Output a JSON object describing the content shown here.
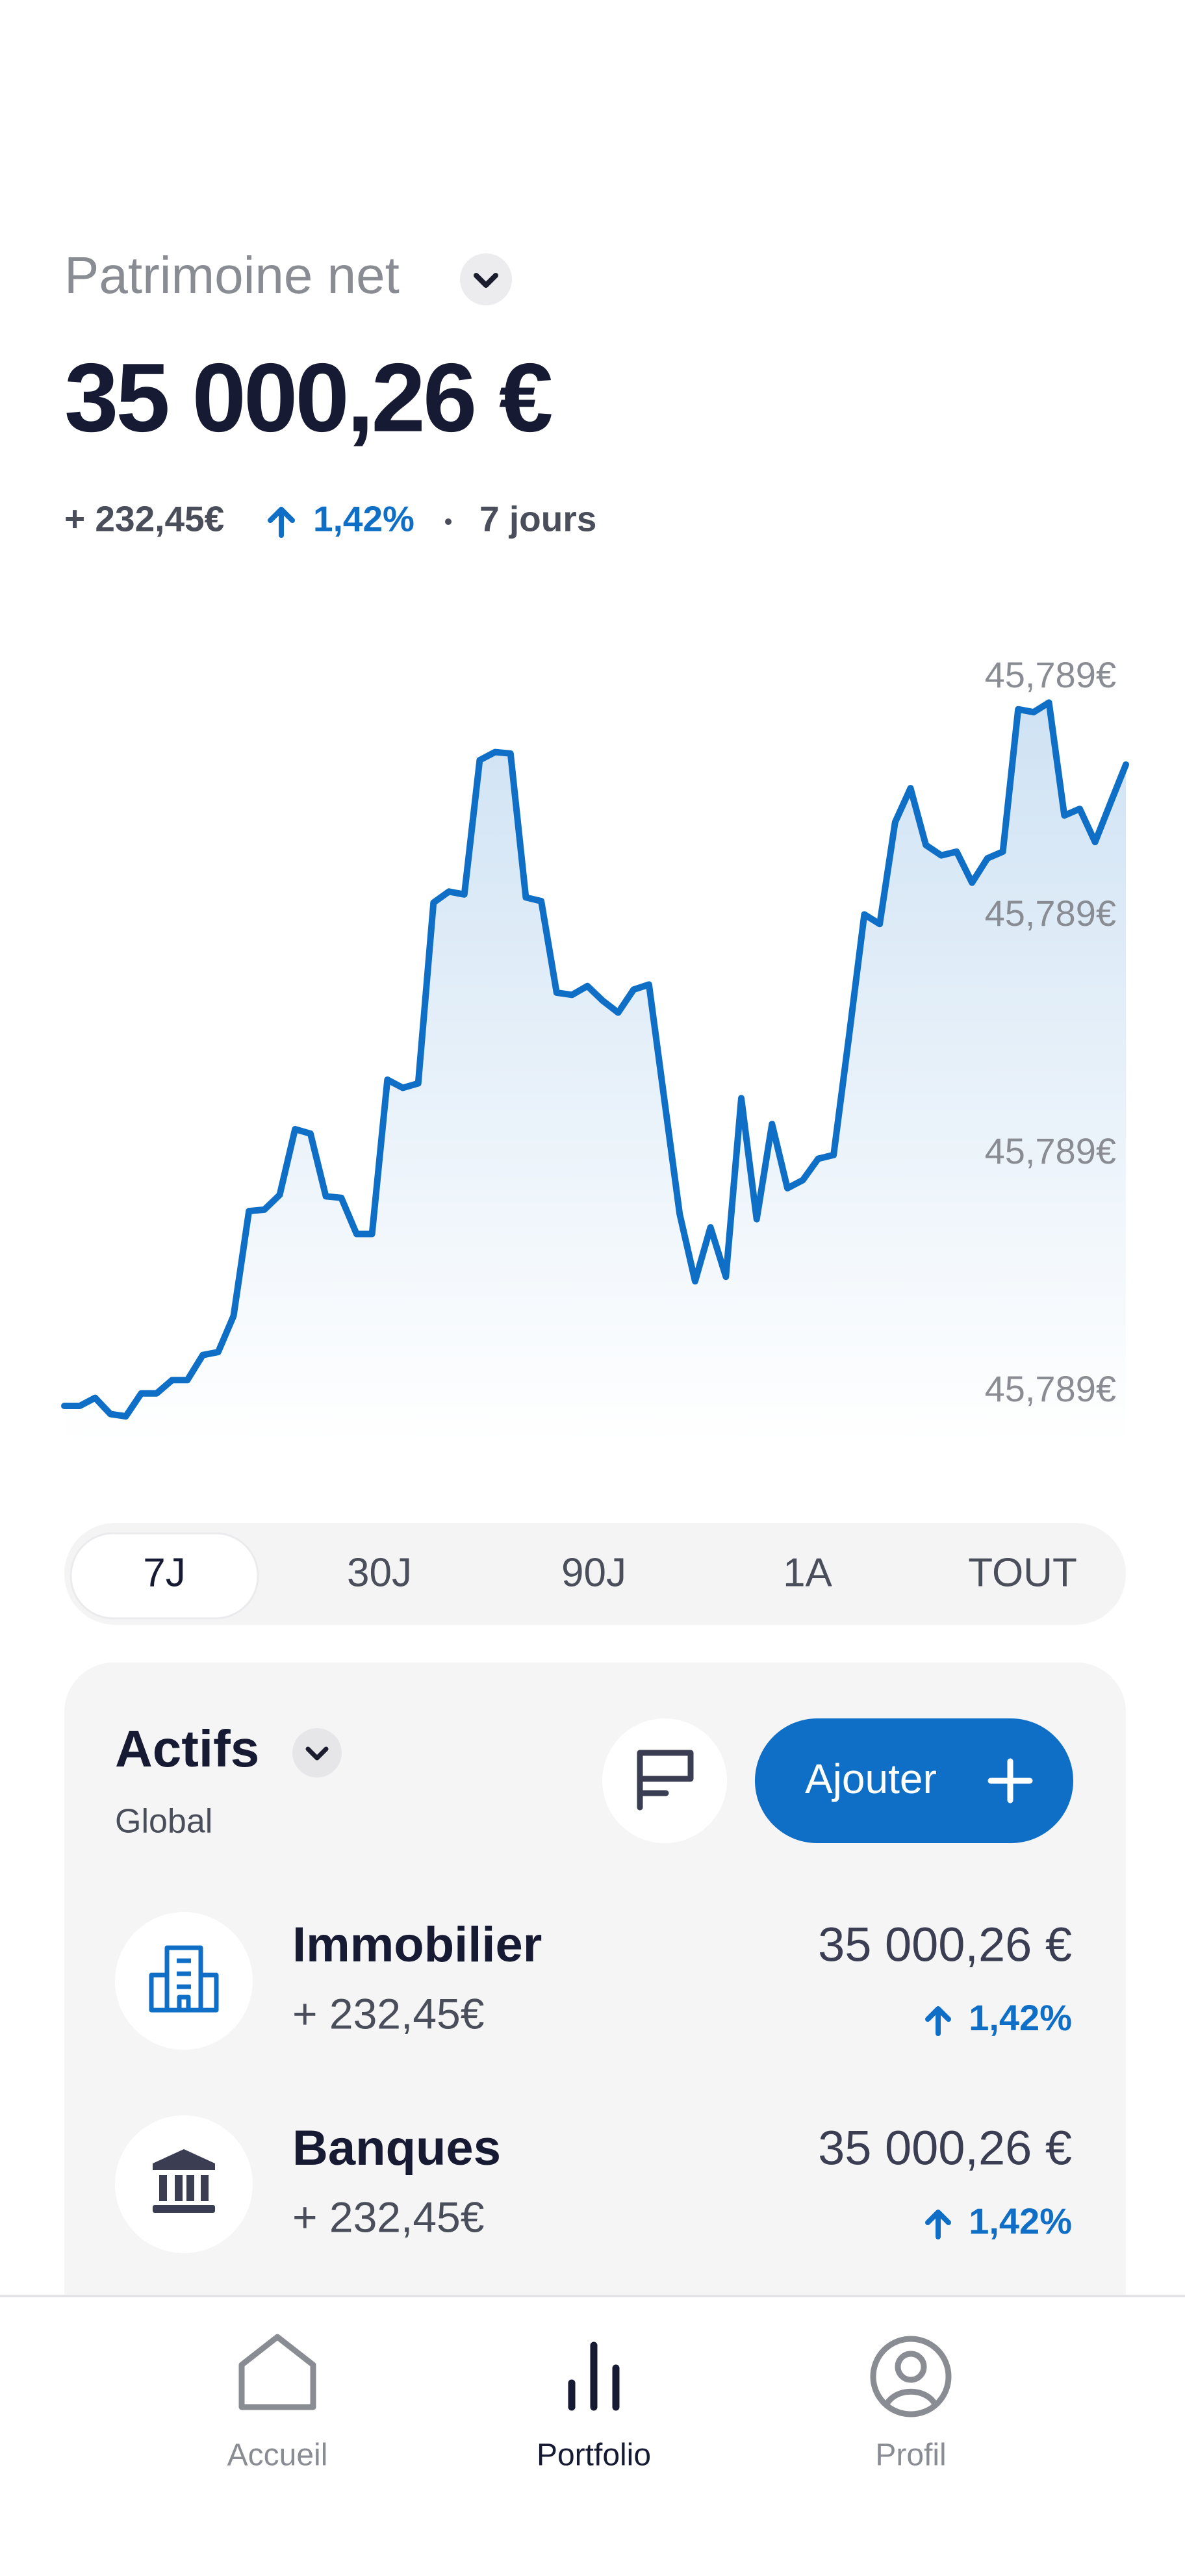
{
  "header": {
    "title": "Patrimoine net",
    "amount": "35 000,26 €",
    "change": "+ 232,45€",
    "change_percent": "1,42%",
    "period": "7 jours"
  },
  "chart_data": {
    "type": "line",
    "color": "#0f6fc6",
    "values": [
      0.7,
      0.7,
      1.8,
      -0.4,
      -0.7,
      2.4,
      2.4,
      4.2,
      4.2,
      7.6,
      8,
      12.9,
      27.1,
      27.3,
      29.3,
      38.2,
      37.6,
      29.1,
      28.9,
      24,
      24,
      44.9,
      43.8,
      44.4,
      68.9,
      70.4,
      70,
      88.2,
      89.3,
      89.1,
      69.6,
      69.1,
      56.7,
      56.4,
      57.6,
      55.6,
      54,
      57.1,
      57.8,
      42.2,
      26.7,
      17.6,
      24.9,
      18.2,
      42.4,
      26,
      38.9,
      30.2,
      31.3,
      34.2,
      34.7,
      50.7,
      67.3,
      66,
      79.8,
      84.4,
      76.7,
      75.3,
      75.8,
      71.6,
      74.9,
      75.8,
      95.1,
      94.7,
      96,
      80.7,
      81.6,
      77.1,
      82.4,
      87.6
    ],
    "ylim": [
      0,
      100
    ],
    "y_labels": [
      "45,789€",
      "45,789€",
      "45,789€",
      "45,789€"
    ]
  },
  "range_tabs": [
    "7J",
    "30J",
    "90J",
    "1A",
    "TOUT"
  ],
  "assets": {
    "title": "Actifs",
    "subtitle": "Global",
    "add_button": "Ajouter",
    "items": [
      {
        "name": "Immobilier",
        "change": "+ 232,45€",
        "amount": "35 000,26 €",
        "percent": "1,42%"
      },
      {
        "name": "Banques",
        "change": "+ 232,45€",
        "amount": "35 000,26 €",
        "percent": "1,42%"
      }
    ]
  },
  "nav": [
    "Accueil",
    "Portfolio",
    "Profil"
  ]
}
